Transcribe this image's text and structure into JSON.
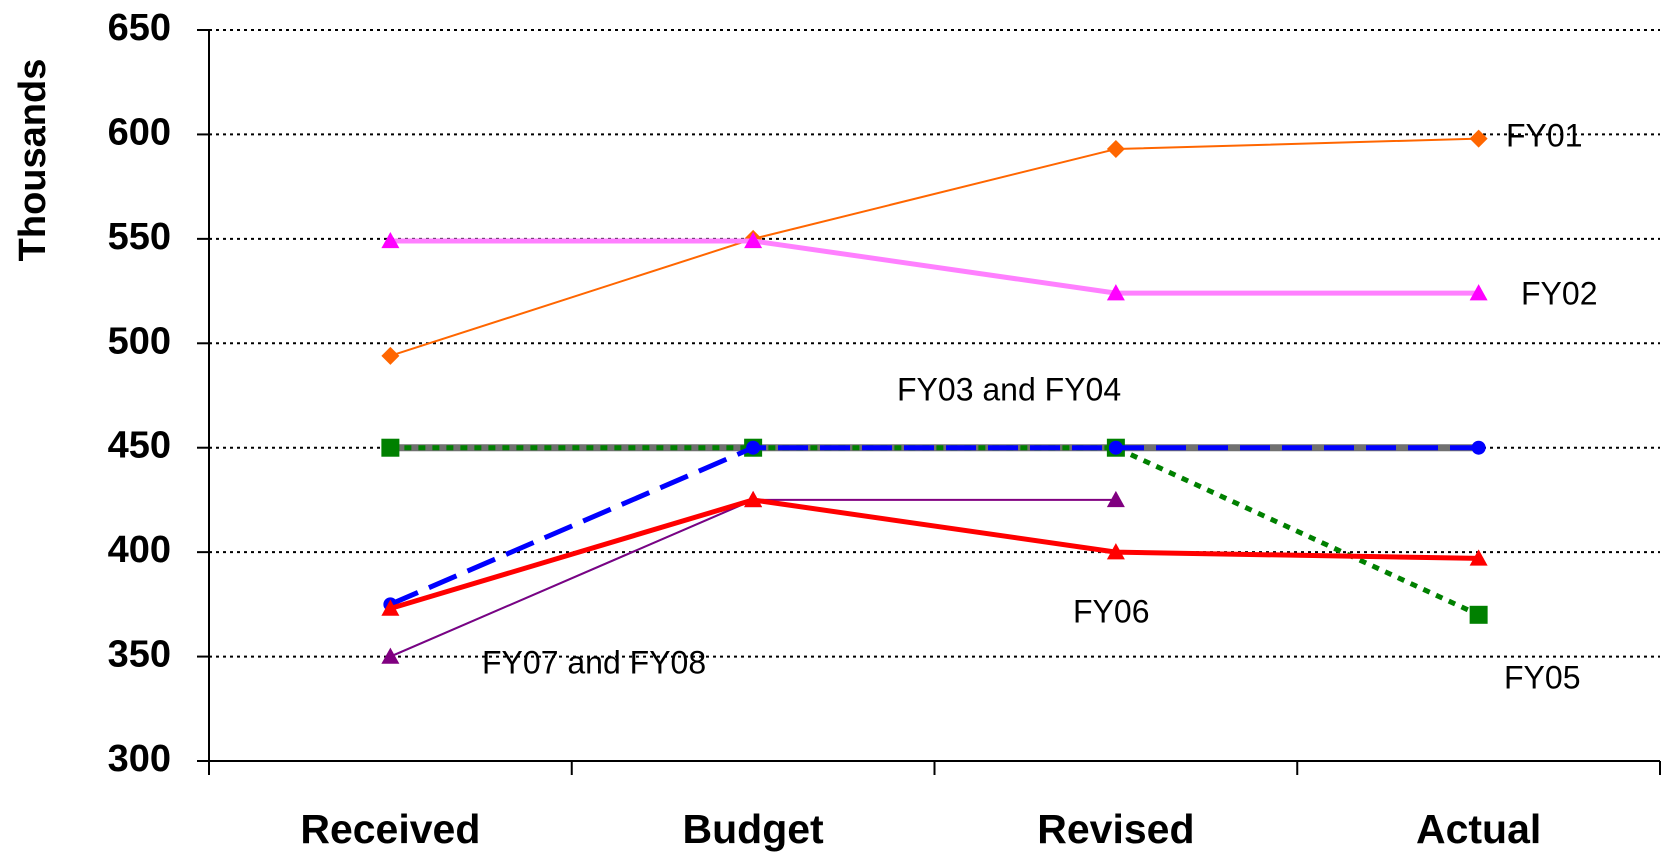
{
  "chart_data": {
    "type": "line",
    "y_label": "Thousands",
    "categories": [
      "Received",
      "Budget",
      "Revised",
      "Actual"
    ],
    "ylim": [
      300,
      650
    ],
    "yticks": [
      300,
      350,
      400,
      450,
      500,
      550,
      600,
      650
    ],
    "grid": true,
    "series": [
      {
        "color": "#ff6600",
        "width": 2,
        "marker": "diamond",
        "marker_color": "#ff6600",
        "values": [
          494,
          550,
          593,
          598
        ]
      },
      {
        "color": "#ff80ff",
        "width": 5,
        "marker": "triangle",
        "marker_color": "#ff00ff",
        "values": [
          549,
          549,
          524,
          524
        ]
      },
      {
        "color": "#707070",
        "width": 7,
        "values": [
          450,
          450,
          450,
          450
        ]
      },
      {
        "color": "#008000",
        "width": 5,
        "dash": "dotted",
        "marker": "square",
        "marker_color": "#008000",
        "values": [
          450,
          450,
          450,
          370
        ]
      },
      {
        "color": "#0000ff",
        "width": 5,
        "dash": "dashed",
        "marker": "circle",
        "marker_color": "#0000ff",
        "values": [
          375,
          450,
          450,
          450
        ]
      },
      {
        "color": "#33ccff",
        "width": 2,
        "values": [
          350,
          425,
          null,
          null
        ]
      },
      {
        "color": "#800080",
        "width": 2,
        "marker": "triangle",
        "marker_color": "#800080",
        "values": [
          350,
          425,
          425,
          null
        ]
      },
      {
        "color": "#ff0000",
        "width": 5,
        "marker": "triangle",
        "marker_color": "#ff0000",
        "values": [
          373,
          425,
          400,
          397
        ]
      }
    ],
    "annotations": [
      "FY01",
      "FY02",
      "FY03 and FY04",
      "FY05",
      "FY06",
      "FY07 and FY08"
    ]
  }
}
